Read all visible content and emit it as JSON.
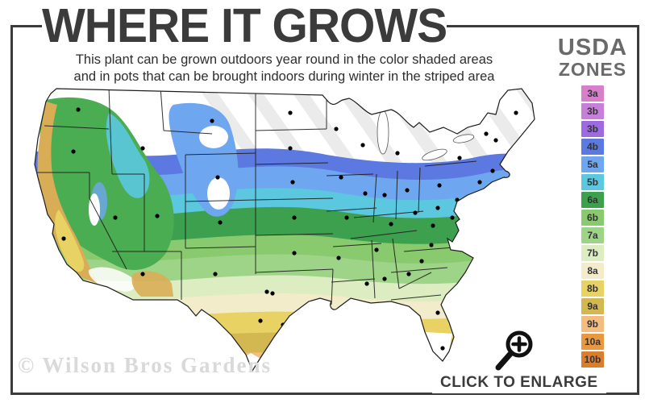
{
  "header": {
    "title": "WHERE IT GROWS",
    "subtitle_line1": "This plant can be grown outdoors year round in the color shaded areas",
    "subtitle_line2": "and in pots that can be brought indoors during winter in the striped area"
  },
  "legend": {
    "title_line1": "USDA",
    "title_line2": "ZONES",
    "items": [
      {
        "zone": "3a",
        "color": "#D77FCB"
      },
      {
        "zone": "3b",
        "color": "#C77FD9"
      },
      {
        "zone": "3b",
        "color": "#9D6AE1"
      },
      {
        "zone": "4b",
        "color": "#5B79E0"
      },
      {
        "zone": "5a",
        "color": "#6FA6F0"
      },
      {
        "zone": "5b",
        "color": "#5BC8DF"
      },
      {
        "zone": "6a",
        "color": "#3CA04E"
      },
      {
        "zone": "6b",
        "color": "#8ACA6E"
      },
      {
        "zone": "7a",
        "color": "#9ED488"
      },
      {
        "zone": "7b",
        "color": "#DCEDC2"
      },
      {
        "zone": "8a",
        "color": "#F2ECCA"
      },
      {
        "zone": "8b",
        "color": "#E8D263"
      },
      {
        "zone": "9a",
        "color": "#D3B750"
      },
      {
        "zone": "9b",
        "color": "#F3BC80"
      },
      {
        "zone": "10a",
        "color": "#EA9840"
      },
      {
        "zone": "10b",
        "color": "#D97E2E"
      }
    ]
  },
  "footer": {
    "watermark": "© Wilson Bros Gardens",
    "enlarge_label": "CLICK TO ENLARGE"
  }
}
